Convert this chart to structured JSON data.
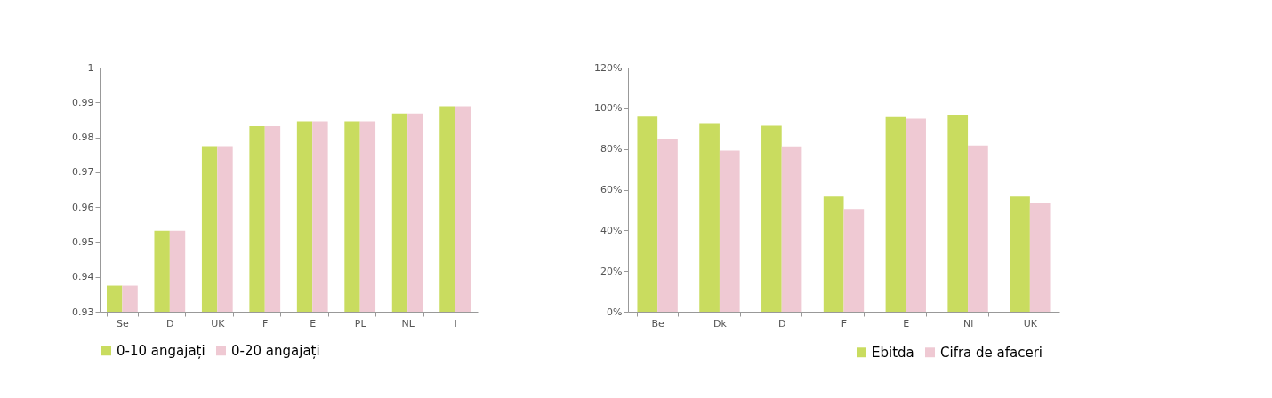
{
  "chart_data": [
    {
      "type": "bar",
      "categories": [
        "Se",
        "D",
        "UK",
        "F",
        "E",
        "PL",
        "NL",
        "I"
      ],
      "series": [
        {
          "name": "0-10 angajați",
          "color": "#c9dc5f",
          "values": [
            0.9375,
            0.9532,
            0.9775,
            0.9832,
            0.9846,
            0.9846,
            0.9868,
            0.9889
          ]
        },
        {
          "name": "0-20 angajați",
          "color": "#efc9d3",
          "values": [
            0.9375,
            0.9532,
            0.9775,
            0.9832,
            0.9846,
            0.9846,
            0.9868,
            0.9889
          ]
        }
      ],
      "ylim": [
        0.93,
        1
      ],
      "yticks": [
        0.93,
        0.94,
        0.95,
        0.96,
        0.97,
        0.98,
        0.99,
        1
      ],
      "grid": false,
      "legend": "bottom"
    },
    {
      "type": "bar",
      "categories": [
        "Be",
        "Dk",
        "D",
        "F",
        "E",
        "Nl",
        "UK"
      ],
      "series": [
        {
          "name": "Ebitda",
          "color": "#c9dc5f",
          "values": [
            95.9,
            92.3,
            91.4,
            56.6,
            95.7,
            96.9,
            56.6
          ]
        },
        {
          "name": "Cifra de afaceri",
          "color": "#efc9d3",
          "values": [
            84.9,
            79.2,
            81.3,
            50.5,
            94.9,
            81.7,
            53.6
          ]
        }
      ],
      "ylim": [
        0,
        120
      ],
      "yticks": [
        {
          "value": 0,
          "label": "0%"
        },
        {
          "value": 20,
          "label": "20%"
        },
        {
          "value": 40,
          "label": "40%"
        },
        {
          "value": 60,
          "label": "60%"
        },
        {
          "value": 80,
          "label": "80%"
        },
        {
          "value": 100,
          "label": "100%"
        },
        {
          "value": 120,
          "label": "120%"
        }
      ],
      "grid": false,
      "legend": "bottom right"
    }
  ]
}
